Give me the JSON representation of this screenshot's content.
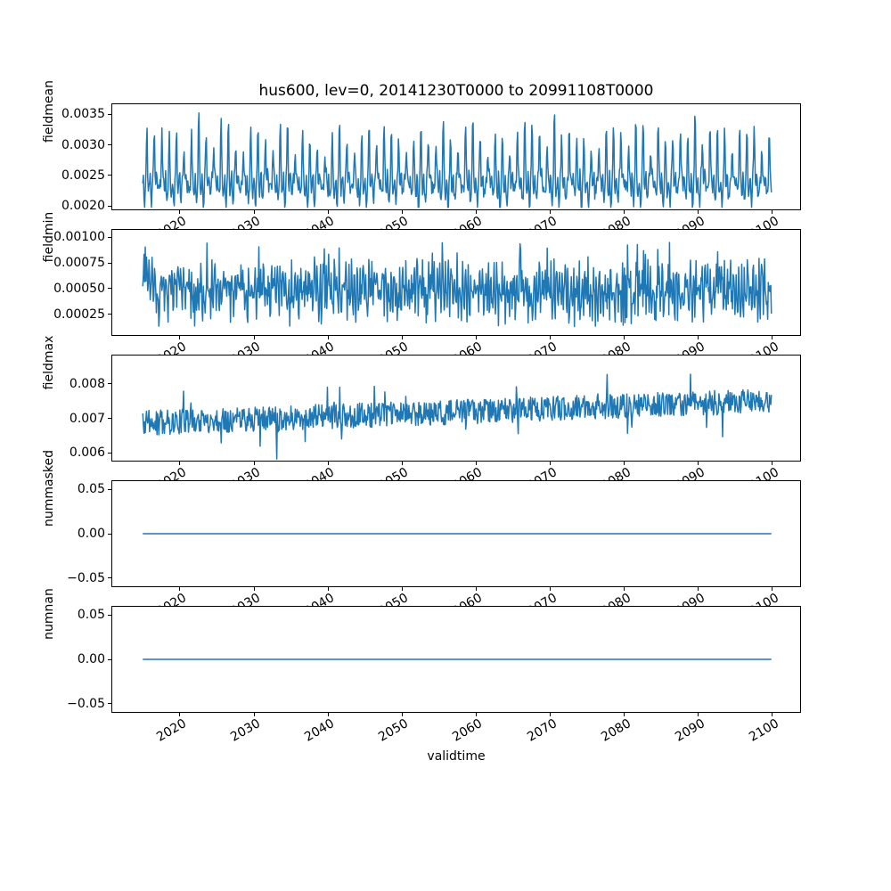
{
  "figure": {
    "title": "hus600, lev=0, 20141230T0000 to 20991108T0000",
    "background": "#ffffff",
    "axes_edge_color": "#000000",
    "text_color": "#000000",
    "line_color": "#1f77b4"
  },
  "x_axis": {
    "label": "validtime",
    "tick_labels": [
      "2020",
      "2030",
      "2040",
      "2050",
      "2060",
      "2070",
      "2080",
      "2090",
      "2100"
    ],
    "tick_values": [
      2020,
      2030,
      2040,
      2050,
      2060,
      2070,
      2080,
      2090,
      2100
    ],
    "lim": [
      2010.75,
      2103.85
    ],
    "data_range": [
      2014.99,
      2099.85
    ]
  },
  "chart_data": [
    {
      "type": "line",
      "ylabel": "fieldmean",
      "ytick_labels": [
        "0.0020",
        "0.0025",
        "0.0030",
        "0.0035"
      ],
      "ytick_values": [
        0.002,
        0.0025,
        0.003,
        0.0035
      ],
      "ylim": [
        0.00193,
        0.00368
      ],
      "legend": "none",
      "series": [
        {
          "name": "fieldmean",
          "color": "#1f77b4",
          "summary": "regular annual oscillation 2015-2099: valleys ~0.0020-0.0022, sharp narrow peaks ~0.0029-0.0035, mean ~0.0026",
          "synth": {
            "kind": "seasonal_spike",
            "seed": 42,
            "points_per_year": 12,
            "base": 0.00236,
            "band_amp": 0.00018,
            "noise": 8e-05,
            "spike_min": 0.0006,
            "spike_max": 0.00115,
            "spike_phase": 0.55,
            "spike_sharpness": 6,
            "dip_amp": 0.00028,
            "dip_phase": 0.2,
            "dip_sharpness": 8,
            "clip": [
              0.00198,
              0.00355
            ]
          }
        }
      ]
    },
    {
      "type": "line",
      "ylabel": "fieldmin",
      "ytick_labels": [
        "0.00025",
        "0.00050",
        "0.00075",
        "0.00100"
      ],
      "ytick_values": [
        0.00025,
        0.0005,
        0.00075,
        0.001
      ],
      "ylim": [
        4e-05,
        0.00108
      ],
      "legend": "none",
      "series": [
        {
          "name": "fieldmin",
          "color": "#1f77b4",
          "summary": "dense noisy oscillation around ~0.0005, swinging between ~0.0001 and ~0.00096, frequent tall spikes",
          "synth": {
            "kind": "noisy",
            "seed": 7,
            "points_per_year": 12,
            "base": 0.00049,
            "band_amp": 0.00013,
            "band_freq": 2.6,
            "noise": 0.00019,
            "spike_hi": 0.00089,
            "spike_lo": 0.00013,
            "spike_prob": 0.035,
            "clip": [
              0.0001,
              0.00096
            ]
          }
        }
      ]
    },
    {
      "type": "line",
      "ylabel": "fieldmax",
      "ytick_labels": [
        "0.006",
        "0.007",
        "0.008"
      ],
      "ytick_values": [
        0.006,
        0.007,
        0.008
      ],
      "ylim": [
        0.00575,
        0.00885
      ],
      "legend": "none",
      "series": [
        {
          "name": "fieldmax",
          "color": "#1f77b4",
          "summary": "noisy series rising from ~0.0068 (2015) to ~0.0076 (2099), excursions down to ~0.0059 and up to ~0.0086",
          "synth": {
            "kind": "noisy_trend",
            "seed": 11,
            "points_per_year": 12,
            "start": 0.00687,
            "slope_per_year": 7.5e-06,
            "noise": 0.00036,
            "spike_prob": 0.012,
            "spike_amp": 0.0009,
            "clip": [
              0.00578,
              0.00868
            ]
          }
        }
      ]
    },
    {
      "type": "line",
      "ylabel": "nummasked",
      "ytick_labels": [
        "0.05",
        "0.00",
        "−0.05"
      ],
      "ytick_values": [
        0.05,
        0.0,
        -0.05
      ],
      "ylim": [
        -0.0605,
        0.0605
      ],
      "legend": "none",
      "series": [
        {
          "name": "nummasked",
          "color": "#1f77b4",
          "summary": "constant 0 over whole period",
          "synth": {
            "kind": "constant",
            "value": 0
          }
        }
      ]
    },
    {
      "type": "line",
      "ylabel": "numnan",
      "ytick_labels": [
        "0.05",
        "0.00",
        "−0.05"
      ],
      "ytick_values": [
        0.05,
        0.0,
        -0.05
      ],
      "ylim": [
        -0.0605,
        0.0605
      ],
      "legend": "none",
      "series": [
        {
          "name": "numnan",
          "color": "#1f77b4",
          "summary": "constant 0 over whole period",
          "synth": {
            "kind": "constant",
            "value": 0
          }
        }
      ]
    }
  ]
}
